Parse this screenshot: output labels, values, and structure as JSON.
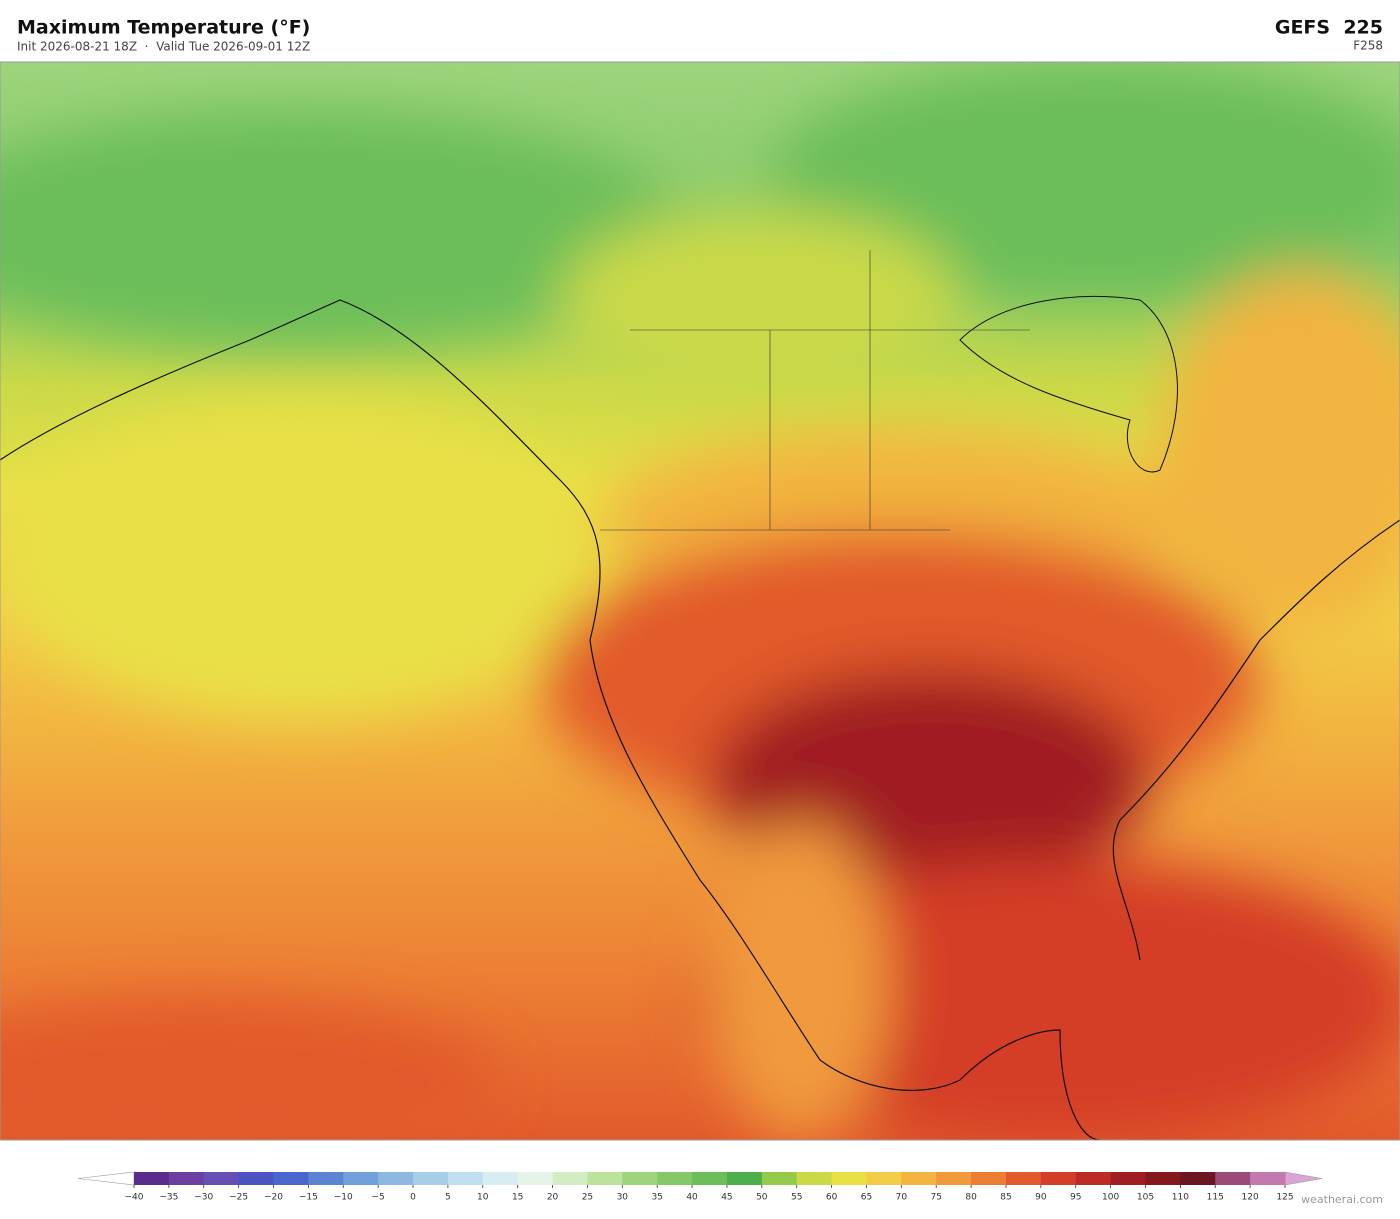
{
  "header": {
    "title": "Maximum Temperature  (°F)",
    "subtitle": "Init 2026-08-21 18Z  ·  Valid Tue 2026-09-01 12Z",
    "model": "GEFS  225",
    "forecast_hour": "F258"
  },
  "colorbar": {
    "ticks": [
      {
        "value": -40,
        "label": "−40"
      },
      {
        "value": -35,
        "label": "−35"
      },
      {
        "value": -30,
        "label": "−30"
      },
      {
        "value": -25,
        "label": "−25"
      },
      {
        "value": -20,
        "label": "−20"
      },
      {
        "value": -15,
        "label": "−15"
      },
      {
        "value": -10,
        "label": "−10"
      },
      {
        "value": -5,
        "label": "−5"
      },
      0,
      5,
      10,
      15,
      20,
      25,
      30,
      35,
      40,
      45,
      50,
      55,
      60,
      65,
      70,
      75,
      80,
      85,
      90,
      95,
      100,
      105,
      110,
      115,
      120,
      125
    ],
    "colors": [
      "#5a2c8c",
      "#6b40a2",
      "#6650b4",
      "#4c52c2",
      "#4a66cc",
      "#5c84d2",
      "#72a0da",
      "#8cb8e2",
      "#a6cee8",
      "#c0e0f0",
      "#d8edf2",
      "#e6f3e6",
      "#d4ecc4",
      "#bce29c",
      "#9ed47c",
      "#84c868",
      "#6cbe5a",
      "#4eae4c",
      "#96ca4a",
      "#cad948",
      "#e9e046",
      "#f2cc46",
      "#f2b440",
      "#f09a3c",
      "#ec7e34",
      "#e25a2c",
      "#d43e28",
      "#bc2c24",
      "#a01e22",
      "#84181c",
      "#6c1622",
      "#9c4a7a",
      "#c27aae"
    ],
    "under_color": "#ffffff",
    "over_color": "#daa4d4"
  },
  "footer": {
    "credit": "weatherai.com"
  }
}
